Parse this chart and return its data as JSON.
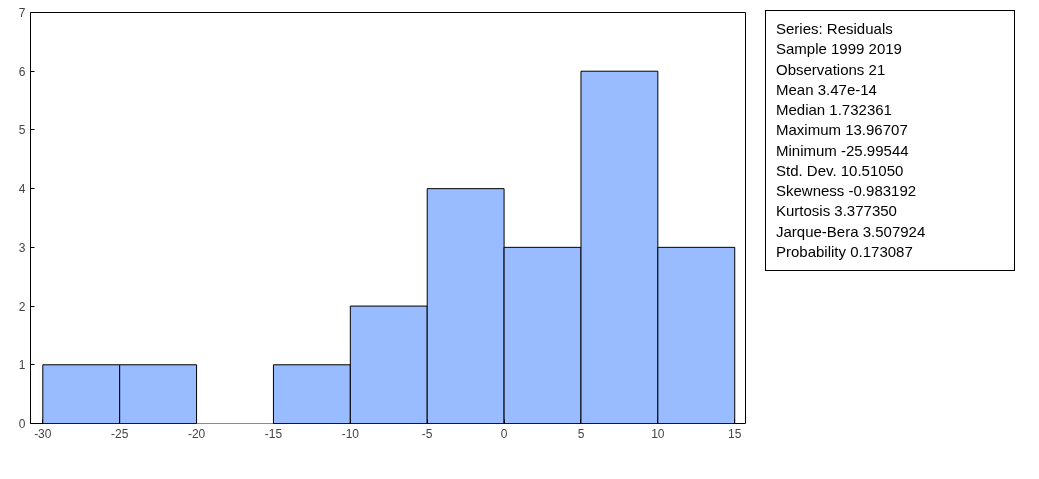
{
  "chart_data": {
    "type": "histogram",
    "bins": [
      -30,
      -25,
      -20,
      -15,
      -10,
      -5,
      0,
      5,
      10,
      15
    ],
    "values": [
      1,
      1,
      0,
      1,
      2,
      4,
      3,
      6,
      3
    ],
    "color": "#99bbff",
    "xlim": [
      -30.8,
      15.7
    ],
    "xticks": [
      -30,
      -25,
      -20,
      -15,
      -10,
      -5,
      0,
      5,
      10,
      15
    ],
    "ylim": [
      0,
      7
    ],
    "yticks": [
      0,
      1,
      2,
      3,
      4,
      5,
      6,
      7
    ],
    "grid": false,
    "annotations": [
      "Series: Residuals",
      "Sample 1999 2019",
      "Observations 21",
      "Mean 3.47e-14",
      "Median 1.732361",
      "Maximum 13.96707",
      "Minimum -25.99544",
      "Std. Dev. 10.51050",
      "Skewness -0.983192",
      "Kurtosis 3.377350",
      "Jarque-Bera 3.507924",
      "Probability 0.173087"
    ]
  }
}
